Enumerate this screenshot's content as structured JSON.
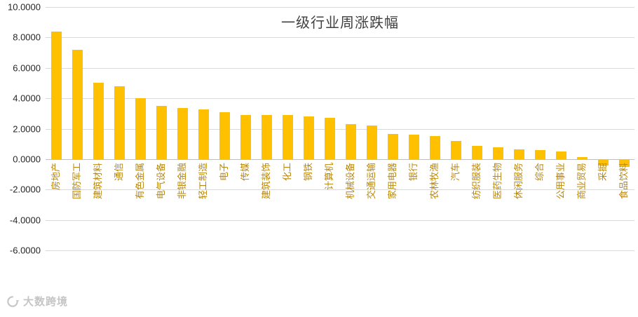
{
  "title": "一级行业周涨跌幅",
  "watermark": {
    "brand": "大数跨境"
  },
  "colors": {
    "bar": "#FFC000",
    "title": "#404040",
    "category_label": "#B8860B",
    "tick_label": "#262626",
    "gridline": "#D9D9D9",
    "axis_line": "#BFBFBF",
    "watermark": "#C5C5C5"
  },
  "chart_data": {
    "type": "bar",
    "title": "一级行业周涨跌幅",
    "categories": [
      "房地产",
      "国防军工",
      "建筑材料",
      "通信",
      "有色金属",
      "电气设备",
      "非银金融",
      "轻工制造",
      "电子",
      "传媒",
      "建筑装饰",
      "化工",
      "钢铁",
      "计算机",
      "机械设备",
      "交通运输",
      "家用电器",
      "银行",
      "农林牧渔",
      "汽车",
      "纺织服装",
      "医药生物",
      "休闲服务",
      "综合",
      "公用事业",
      "商业贸易",
      "采掘",
      "食品饮料"
    ],
    "values": [
      8.4,
      7.2,
      5.0,
      4.8,
      4.0,
      3.5,
      3.35,
      3.25,
      3.1,
      2.9,
      2.9,
      2.9,
      2.8,
      2.7,
      2.3,
      2.2,
      1.65,
      1.6,
      1.5,
      1.2,
      0.85,
      0.8,
      0.65,
      0.6,
      0.5,
      0.15,
      -0.4,
      -0.5
    ],
    "xlabel": "",
    "ylabel": "",
    "ylim": [
      -6,
      10
    ],
    "ytick_step": 2,
    "ytick_labels": [
      "10.0000",
      "8.0000",
      "6.0000",
      "4.0000",
      "2.0000",
      "0.0000",
      "-2.0000",
      "-4.0000",
      "-6.0000"
    ],
    "grid": true,
    "legend_position": "none"
  }
}
